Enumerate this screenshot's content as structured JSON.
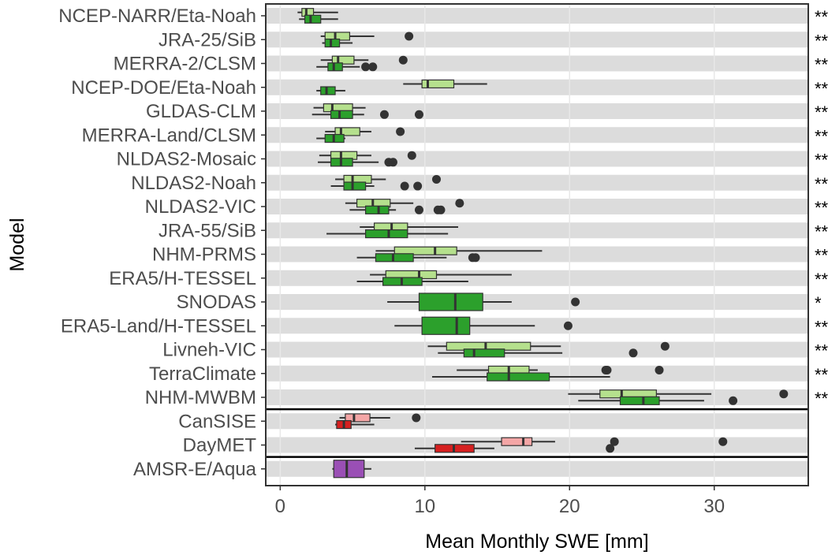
{
  "chart_data": {
    "type": "boxplot",
    "orientation": "horizontal",
    "xlabel": "Mean Monthly SWE [mm]",
    "ylabel": "Model",
    "xlim": [
      -1,
      36.5
    ],
    "x_ticks": [
      0,
      10,
      20,
      30
    ],
    "grid": true,
    "legend": "none",
    "colors": {
      "light_green": "#b5e08d",
      "dark_green": "#2ca02c",
      "light_red": "#f4a6a6",
      "dark_red": "#d62020",
      "purple": "#9a4fb5",
      "outlier": "#333333",
      "band": "#dcdcdc",
      "separator": "#000000"
    },
    "separators_after": [
      "NHM-MWBM",
      "DayMET"
    ],
    "categories": [
      "NCEP-NARR/Eta-Noah",
      "JRA-25/SiB",
      "MERRA-2/CLSM",
      "NCEP-DOE/Eta-Noah",
      "GLDAS-CLM",
      "MERRA-Land/CLSM",
      "NLDAS2-Mosaic",
      "NLDAS2-Noah",
      "NLDAS2-VIC",
      "JRA-55/SiB",
      "NHM-PRMS",
      "ERA5/H-TESSEL",
      "SNODAS",
      "ERA5-Land/H-TESSEL",
      "Livneh-VIC",
      "TerraClimate",
      "NHM-MWBM",
      "CanSISE",
      "DayMET",
      "AMSR-E/Aqua"
    ],
    "significance": [
      "**",
      "**",
      "**",
      "**",
      "**",
      "**",
      "**",
      "**",
      "**",
      "**",
      "**",
      "**",
      "*",
      "**",
      "**",
      "**",
      "**",
      "",
      "",
      ""
    ],
    "boxes": [
      {
        "model": "NCEP-NARR/Eta-Noah",
        "color": "light_green",
        "pos": "upper",
        "min": 1.2,
        "q1": 1.5,
        "median": 1.8,
        "q3": 2.3,
        "max": 4.0,
        "outliers": []
      },
      {
        "model": "NCEP-NARR/Eta-Noah",
        "color": "dark_green",
        "pos": "lower",
        "min": 1.3,
        "q1": 1.7,
        "median": 2.1,
        "q3": 2.8,
        "max": 4.0,
        "outliers": []
      },
      {
        "model": "JRA-25/SiB",
        "color": "light_green",
        "pos": "upper",
        "min": 2.8,
        "q1": 3.1,
        "median": 3.8,
        "q3": 4.8,
        "max": 6.5,
        "outliers": [
          8.9
        ]
      },
      {
        "model": "JRA-25/SiB",
        "color": "dark_green",
        "pos": "lower",
        "min": 2.9,
        "q1": 3.1,
        "median": 3.5,
        "q3": 4.1,
        "max": 5.0,
        "outliers": []
      },
      {
        "model": "MERRA-2/CLSM",
        "color": "light_green",
        "pos": "upper",
        "min": 2.8,
        "q1": 3.6,
        "median": 4.0,
        "q3": 5.1,
        "max": 6.1,
        "outliers": [
          8.5
        ]
      },
      {
        "model": "MERRA-2/CLSM",
        "color": "dark_green",
        "pos": "lower",
        "min": 2.5,
        "q1": 3.3,
        "median": 3.7,
        "q3": 4.3,
        "max": 5.5,
        "outliers": [
          5.9,
          6.4
        ]
      },
      {
        "model": "NCEP-DOE/Eta-Noah",
        "color": "light_green",
        "pos": "upper",
        "min": 8.5,
        "q1": 9.8,
        "median": 10.2,
        "q3": 12.0,
        "max": 14.3,
        "outliers": []
      },
      {
        "model": "NCEP-DOE/Eta-Noah",
        "color": "dark_green",
        "pos": "lower",
        "min": 2.5,
        "q1": 2.8,
        "median": 3.2,
        "q3": 3.8,
        "max": 4.5,
        "outliers": []
      },
      {
        "model": "GLDAS-CLM",
        "color": "light_green",
        "pos": "upper",
        "min": 2.3,
        "q1": 3.0,
        "median": 3.6,
        "q3": 5.0,
        "max": 5.9,
        "outliers": []
      },
      {
        "model": "GLDAS-CLM",
        "color": "dark_green",
        "pos": "lower",
        "min": 2.2,
        "q1": 3.5,
        "median": 4.1,
        "q3": 5.0,
        "max": 5.8,
        "outliers": [
          7.2,
          9.6
        ]
      },
      {
        "model": "MERRA-Land/CLSM",
        "color": "light_green",
        "pos": "upper",
        "min": 3.1,
        "q1": 3.8,
        "median": 4.2,
        "q3": 5.5,
        "max": 6.3,
        "outliers": [
          8.3
        ]
      },
      {
        "model": "MERRA-Land/CLSM",
        "color": "dark_green",
        "pos": "lower",
        "min": 2.5,
        "q1": 3.1,
        "median": 3.7,
        "q3": 4.4,
        "max": 4.5,
        "outliers": []
      },
      {
        "model": "NLDAS2-Mosaic",
        "color": "light_green",
        "pos": "upper",
        "min": 2.7,
        "q1": 3.5,
        "median": 4.2,
        "q3": 5.3,
        "max": 6.3,
        "outliers": [
          9.1
        ]
      },
      {
        "model": "NLDAS2-Mosaic",
        "color": "dark_green",
        "pos": "lower",
        "min": 2.6,
        "q1": 3.5,
        "median": 4.2,
        "q3": 5.0,
        "max": 6.8,
        "outliers": [
          7.5,
          7.8
        ]
      },
      {
        "model": "NLDAS2-Noah",
        "color": "light_green",
        "pos": "upper",
        "min": 3.8,
        "q1": 4.4,
        "median": 5.0,
        "q3": 6.3,
        "max": 7.3,
        "outliers": [
          10.8
        ]
      },
      {
        "model": "NLDAS2-Noah",
        "color": "dark_green",
        "pos": "lower",
        "min": 3.5,
        "q1": 4.4,
        "median": 5.0,
        "q3": 5.9,
        "max": 6.5,
        "outliers": [
          8.6,
          9.5
        ]
      },
      {
        "model": "NLDAS2-VIC",
        "color": "light_green",
        "pos": "upper",
        "min": 4.5,
        "q1": 5.3,
        "median": 6.4,
        "q3": 7.6,
        "max": 9.2,
        "outliers": [
          12.4
        ]
      },
      {
        "model": "NLDAS2-VIC",
        "color": "dark_green",
        "pos": "lower",
        "min": 4.8,
        "q1": 5.9,
        "median": 6.8,
        "q3": 7.5,
        "max": 8.0,
        "outliers": [
          9.6,
          10.9,
          11.1
        ]
      },
      {
        "model": "JRA-55/SiB",
        "color": "light_green",
        "pos": "upper",
        "min": 5.5,
        "q1": 6.5,
        "median": 7.7,
        "q3": 8.8,
        "max": 12.3,
        "outliers": []
      },
      {
        "model": "JRA-55/SiB",
        "color": "dark_green",
        "pos": "lower",
        "min": 3.2,
        "q1": 5.9,
        "median": 7.5,
        "q3": 8.8,
        "max": 11.6,
        "outliers": []
      },
      {
        "model": "NHM-PRMS",
        "color": "light_green",
        "pos": "upper",
        "min": 6.6,
        "q1": 7.9,
        "median": 10.7,
        "q3": 12.2,
        "max": 18.1,
        "outliers": []
      },
      {
        "model": "NHM-PRMS",
        "color": "dark_green",
        "pos": "lower",
        "min": 5.3,
        "q1": 6.6,
        "median": 7.8,
        "q3": 9.2,
        "max": 11.5,
        "outliers": [
          13.3,
          13.5
        ]
      },
      {
        "model": "ERA5/H-TESSEL",
        "color": "light_green",
        "pos": "upper",
        "min": 6.2,
        "q1": 7.3,
        "median": 9.6,
        "q3": 10.8,
        "max": 16.0,
        "outliers": []
      },
      {
        "model": "ERA5/H-TESSEL",
        "color": "dark_green",
        "pos": "lower",
        "min": 5.3,
        "q1": 7.1,
        "median": 8.4,
        "q3": 9.8,
        "max": 13.0,
        "outliers": []
      },
      {
        "model": "SNODAS",
        "color": "dark_green",
        "pos": "single",
        "min": 7.4,
        "q1": 9.6,
        "median": 12.1,
        "q3": 14.0,
        "max": 16.0,
        "outliers": [
          20.4
        ]
      },
      {
        "model": "ERA5-Land/H-TESSEL",
        "color": "dark_green",
        "pos": "single",
        "min": 7.9,
        "q1": 9.8,
        "median": 12.2,
        "q3": 13.1,
        "max": 17.6,
        "outliers": [
          19.9
        ]
      },
      {
        "model": "Livneh-VIC",
        "color": "light_green",
        "pos": "upper",
        "min": 10.2,
        "q1": 11.5,
        "median": 14.2,
        "q3": 17.3,
        "max": 19.4,
        "outliers": [
          26.6
        ]
      },
      {
        "model": "Livneh-VIC",
        "color": "dark_green",
        "pos": "lower",
        "min": 10.9,
        "q1": 12.7,
        "median": 13.4,
        "q3": 15.5,
        "max": 19.5,
        "outliers": [
          24.4
        ]
      },
      {
        "model": "TerraClimate",
        "color": "light_green",
        "pos": "upper",
        "min": 12.2,
        "q1": 14.4,
        "median": 15.8,
        "q3": 17.2,
        "max": 17.8,
        "outliers": [
          22.5,
          22.6,
          26.2
        ]
      },
      {
        "model": "TerraClimate",
        "color": "dark_green",
        "pos": "lower",
        "min": 10.5,
        "q1": 14.3,
        "median": 15.8,
        "q3": 18.6,
        "max": 22.8,
        "outliers": []
      },
      {
        "model": "NHM-MWBM",
        "color": "light_green",
        "pos": "upper",
        "min": 19.9,
        "q1": 22.1,
        "median": 23.6,
        "q3": 26.0,
        "max": 29.8,
        "outliers": [
          34.8
        ]
      },
      {
        "model": "NHM-MWBM",
        "color": "dark_green",
        "pos": "lower",
        "min": 20.6,
        "q1": 23.5,
        "median": 25.1,
        "q3": 26.2,
        "max": 29.3,
        "outliers": [
          31.3
        ]
      },
      {
        "model": "CanSISE",
        "color": "light_red",
        "pos": "upper",
        "min": 4.1,
        "q1": 4.5,
        "median": 5.1,
        "q3": 6.2,
        "max": 7.6,
        "outliers": [
          9.4
        ]
      },
      {
        "model": "CanSISE",
        "color": "dark_red",
        "pos": "lower",
        "min": 3.8,
        "q1": 3.9,
        "median": 4.4,
        "q3": 4.9,
        "max": 6.5,
        "outliers": []
      },
      {
        "model": "DayMET",
        "color": "light_red",
        "pos": "upper",
        "min": 12.5,
        "q1": 15.3,
        "median": 16.8,
        "q3": 17.4,
        "max": 19.0,
        "outliers": [
          23.1,
          30.6
        ]
      },
      {
        "model": "DayMET",
        "color": "dark_red",
        "pos": "lower",
        "min": 9.3,
        "q1": 10.7,
        "median": 12.0,
        "q3": 13.4,
        "max": 14.8,
        "outliers": [
          22.8
        ]
      },
      {
        "model": "AMSR-E/Aqua",
        "color": "purple",
        "pos": "single",
        "min": 3.6,
        "q1": 3.7,
        "median": 4.6,
        "q3": 5.8,
        "max": 6.3,
        "outliers": []
      }
    ]
  }
}
